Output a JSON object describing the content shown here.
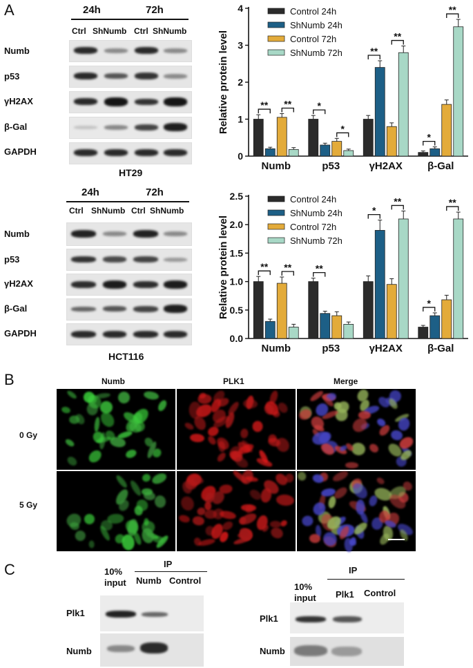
{
  "panel_a": {
    "letter": "A",
    "blot1": {
      "cell_line": "HT29",
      "times": [
        "24h",
        "72h"
      ],
      "lanes": [
        "Ctrl",
        "ShNumb",
        "Ctrl",
        "ShNumb"
      ],
      "rows": [
        "Numb",
        "p53",
        "γH2AX",
        "β-Gal",
        "GAPDH"
      ]
    },
    "blot2": {
      "cell_line": "HCT116",
      "times": [
        "24h",
        "72h"
      ],
      "lanes": [
        "Ctrl",
        "ShNumb",
        "Ctrl",
        "ShNumb"
      ],
      "rows": [
        "Numb",
        "p53",
        "γH2AX",
        "β-Gal",
        "GAPDH"
      ]
    }
  },
  "panel_b": {
    "letter": "B",
    "columns": [
      "Numb",
      "PLK1",
      "Merge"
    ],
    "rows": [
      "0 Gy",
      "5 Gy"
    ]
  },
  "panel_c": {
    "letter": "C",
    "left": {
      "input_label_1": "10%",
      "input_label_2": "input",
      "ip_label": "IP",
      "lanes": [
        "Numb",
        "Control"
      ],
      "rows": [
        "Plk1",
        "Numb"
      ]
    },
    "right": {
      "input_label_1": "10%",
      "input_label_2": "input",
      "ip_label": "IP",
      "lanes": [
        "Plk1",
        "Control"
      ],
      "rows": [
        "Plk1",
        "Numb"
      ]
    }
  },
  "colors": {
    "control_24h": "#2b2b2b",
    "shnumb_24h": "#1d5f86",
    "control_72h": "#e3ab3a",
    "shnumb_72h": "#a8d8c6"
  },
  "chart_data": [
    {
      "type": "bar",
      "ylabel": "Relative protein level",
      "categories": [
        "Numb",
        "p53",
        "γH2AX",
        "β-Gal"
      ],
      "ylim": [
        0,
        4
      ],
      "yticks": [
        "0",
        "1",
        "2",
        "3",
        "4"
      ],
      "series": [
        {
          "name": "Control 24h",
          "values": [
            1.0,
            1.0,
            1.0,
            0.1
          ],
          "errors": [
            0.12,
            0.1,
            0.1,
            0.04
          ]
        },
        {
          "name": "ShNumb 24h",
          "values": [
            0.2,
            0.3,
            2.4,
            0.2
          ],
          "errors": [
            0.04,
            0.05,
            0.18,
            0.05
          ]
        },
        {
          "name": "Control 72h",
          "values": [
            1.05,
            0.4,
            0.8,
            1.4
          ],
          "errors": [
            0.1,
            0.08,
            0.1,
            0.12
          ]
        },
        {
          "name": "ShNumb 72h",
          "values": [
            0.18,
            0.15,
            2.8,
            3.5
          ],
          "errors": [
            0.05,
            0.04,
            0.18,
            0.2
          ]
        }
      ],
      "significance": [
        {
          "category": "Numb",
          "pair": "24h",
          "label": "**"
        },
        {
          "category": "Numb",
          "pair": "72h",
          "label": "**"
        },
        {
          "category": "p53",
          "pair": "24h",
          "label": "*"
        },
        {
          "category": "p53",
          "pair": "72h",
          "label": "*"
        },
        {
          "category": "γH2AX",
          "pair": "24h",
          "label": "**"
        },
        {
          "category": "γH2AX",
          "pair": "72h",
          "label": "**"
        },
        {
          "category": "β-Gal",
          "pair": "24h",
          "label": "*"
        },
        {
          "category": "β-Gal",
          "pair": "72h",
          "label": "**"
        }
      ],
      "legend": "top-left"
    },
    {
      "type": "bar",
      "ylabel": "Relative protein level",
      "categories": [
        "Numb",
        "p53",
        "γH2AX",
        "β-Gal"
      ],
      "ylim": [
        0,
        2.5
      ],
      "yticks": [
        "0.0",
        "0.5",
        "1.0",
        "1.5",
        "2.0",
        "2.5"
      ],
      "series": [
        {
          "name": "Control 24h",
          "values": [
            1.0,
            1.0,
            1.0,
            0.2
          ],
          "errors": [
            0.09,
            0.06,
            0.1,
            0.03
          ]
        },
        {
          "name": "ShNumb 24h",
          "values": [
            0.3,
            0.44,
            1.9,
            0.4
          ],
          "errors": [
            0.04,
            0.04,
            0.18,
            0.05
          ]
        },
        {
          "name": "Control 72h",
          "values": [
            0.97,
            0.4,
            0.95,
            0.68
          ],
          "errors": [
            0.11,
            0.07,
            0.1,
            0.08
          ]
        },
        {
          "name": "ShNumb 72h",
          "values": [
            0.2,
            0.25,
            2.1,
            2.1
          ],
          "errors": [
            0.05,
            0.04,
            0.14,
            0.12
          ]
        }
      ],
      "significance": [
        {
          "category": "Numb",
          "pair": "24h",
          "label": "**"
        },
        {
          "category": "Numb",
          "pair": "72h",
          "label": "**"
        },
        {
          "category": "p53",
          "pair": "24h",
          "label": "**"
        },
        {
          "category": "γH2AX",
          "pair": "24h",
          "label": "*"
        },
        {
          "category": "γH2AX",
          "pair": "72h",
          "label": "**"
        },
        {
          "category": "β-Gal",
          "pair": "24h",
          "label": "*"
        },
        {
          "category": "β-Gal",
          "pair": "72h",
          "label": "**"
        }
      ],
      "legend": "top-left"
    }
  ]
}
